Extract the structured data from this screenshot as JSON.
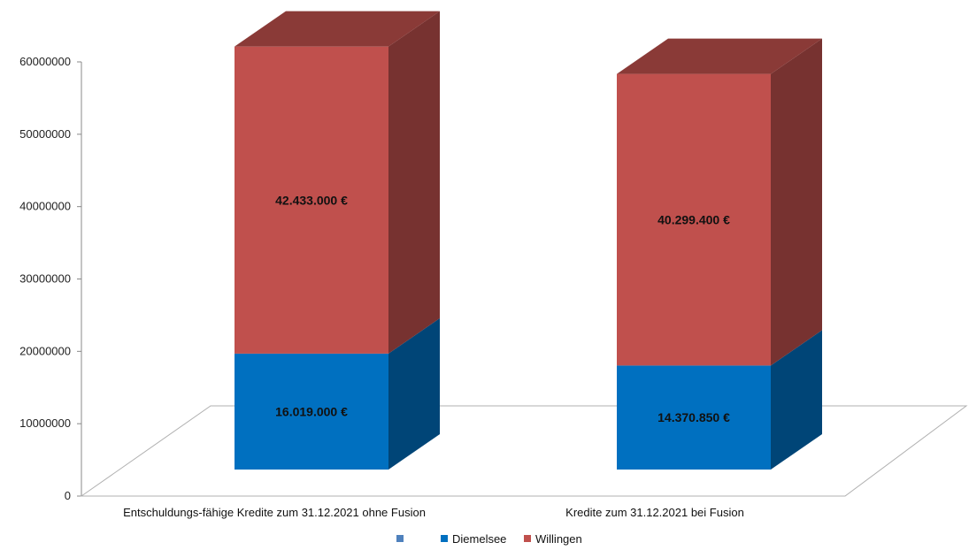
{
  "chart_data": {
    "type": "bar",
    "stacked": true,
    "three_d": true,
    "categories": [
      "Entschuldungs-fähige Kredite zum 31.12.2021 ohne Fusion",
      "Kredite zum 31.12.2021 bei Fusion"
    ],
    "series": [
      {
        "name": "Diemelsee",
        "values": [
          16019000,
          14370850
        ],
        "data_labels": [
          "16.019.000 €",
          "14.370.850 €"
        ],
        "color": "#0070c0"
      },
      {
        "name": "Willingen",
        "values": [
          42433000,
          40299400
        ],
        "data_labels": [
          "42.433.000 €",
          "40.299.400 €"
        ],
        "color": "#c0504d"
      }
    ],
    "legend": {
      "position": "bottom",
      "entries": [
        "",
        "Diemelsee",
        "Willingen"
      ],
      "colors": [
        "#4f81bd",
        "#0070c0",
        "#c0504d"
      ]
    },
    "yticks": [
      "0",
      "10000000",
      "20000000",
      "30000000",
      "40000000",
      "50000000",
      "60000000"
    ],
    "ylim": [
      0,
      60000000
    ],
    "grid": false
  }
}
